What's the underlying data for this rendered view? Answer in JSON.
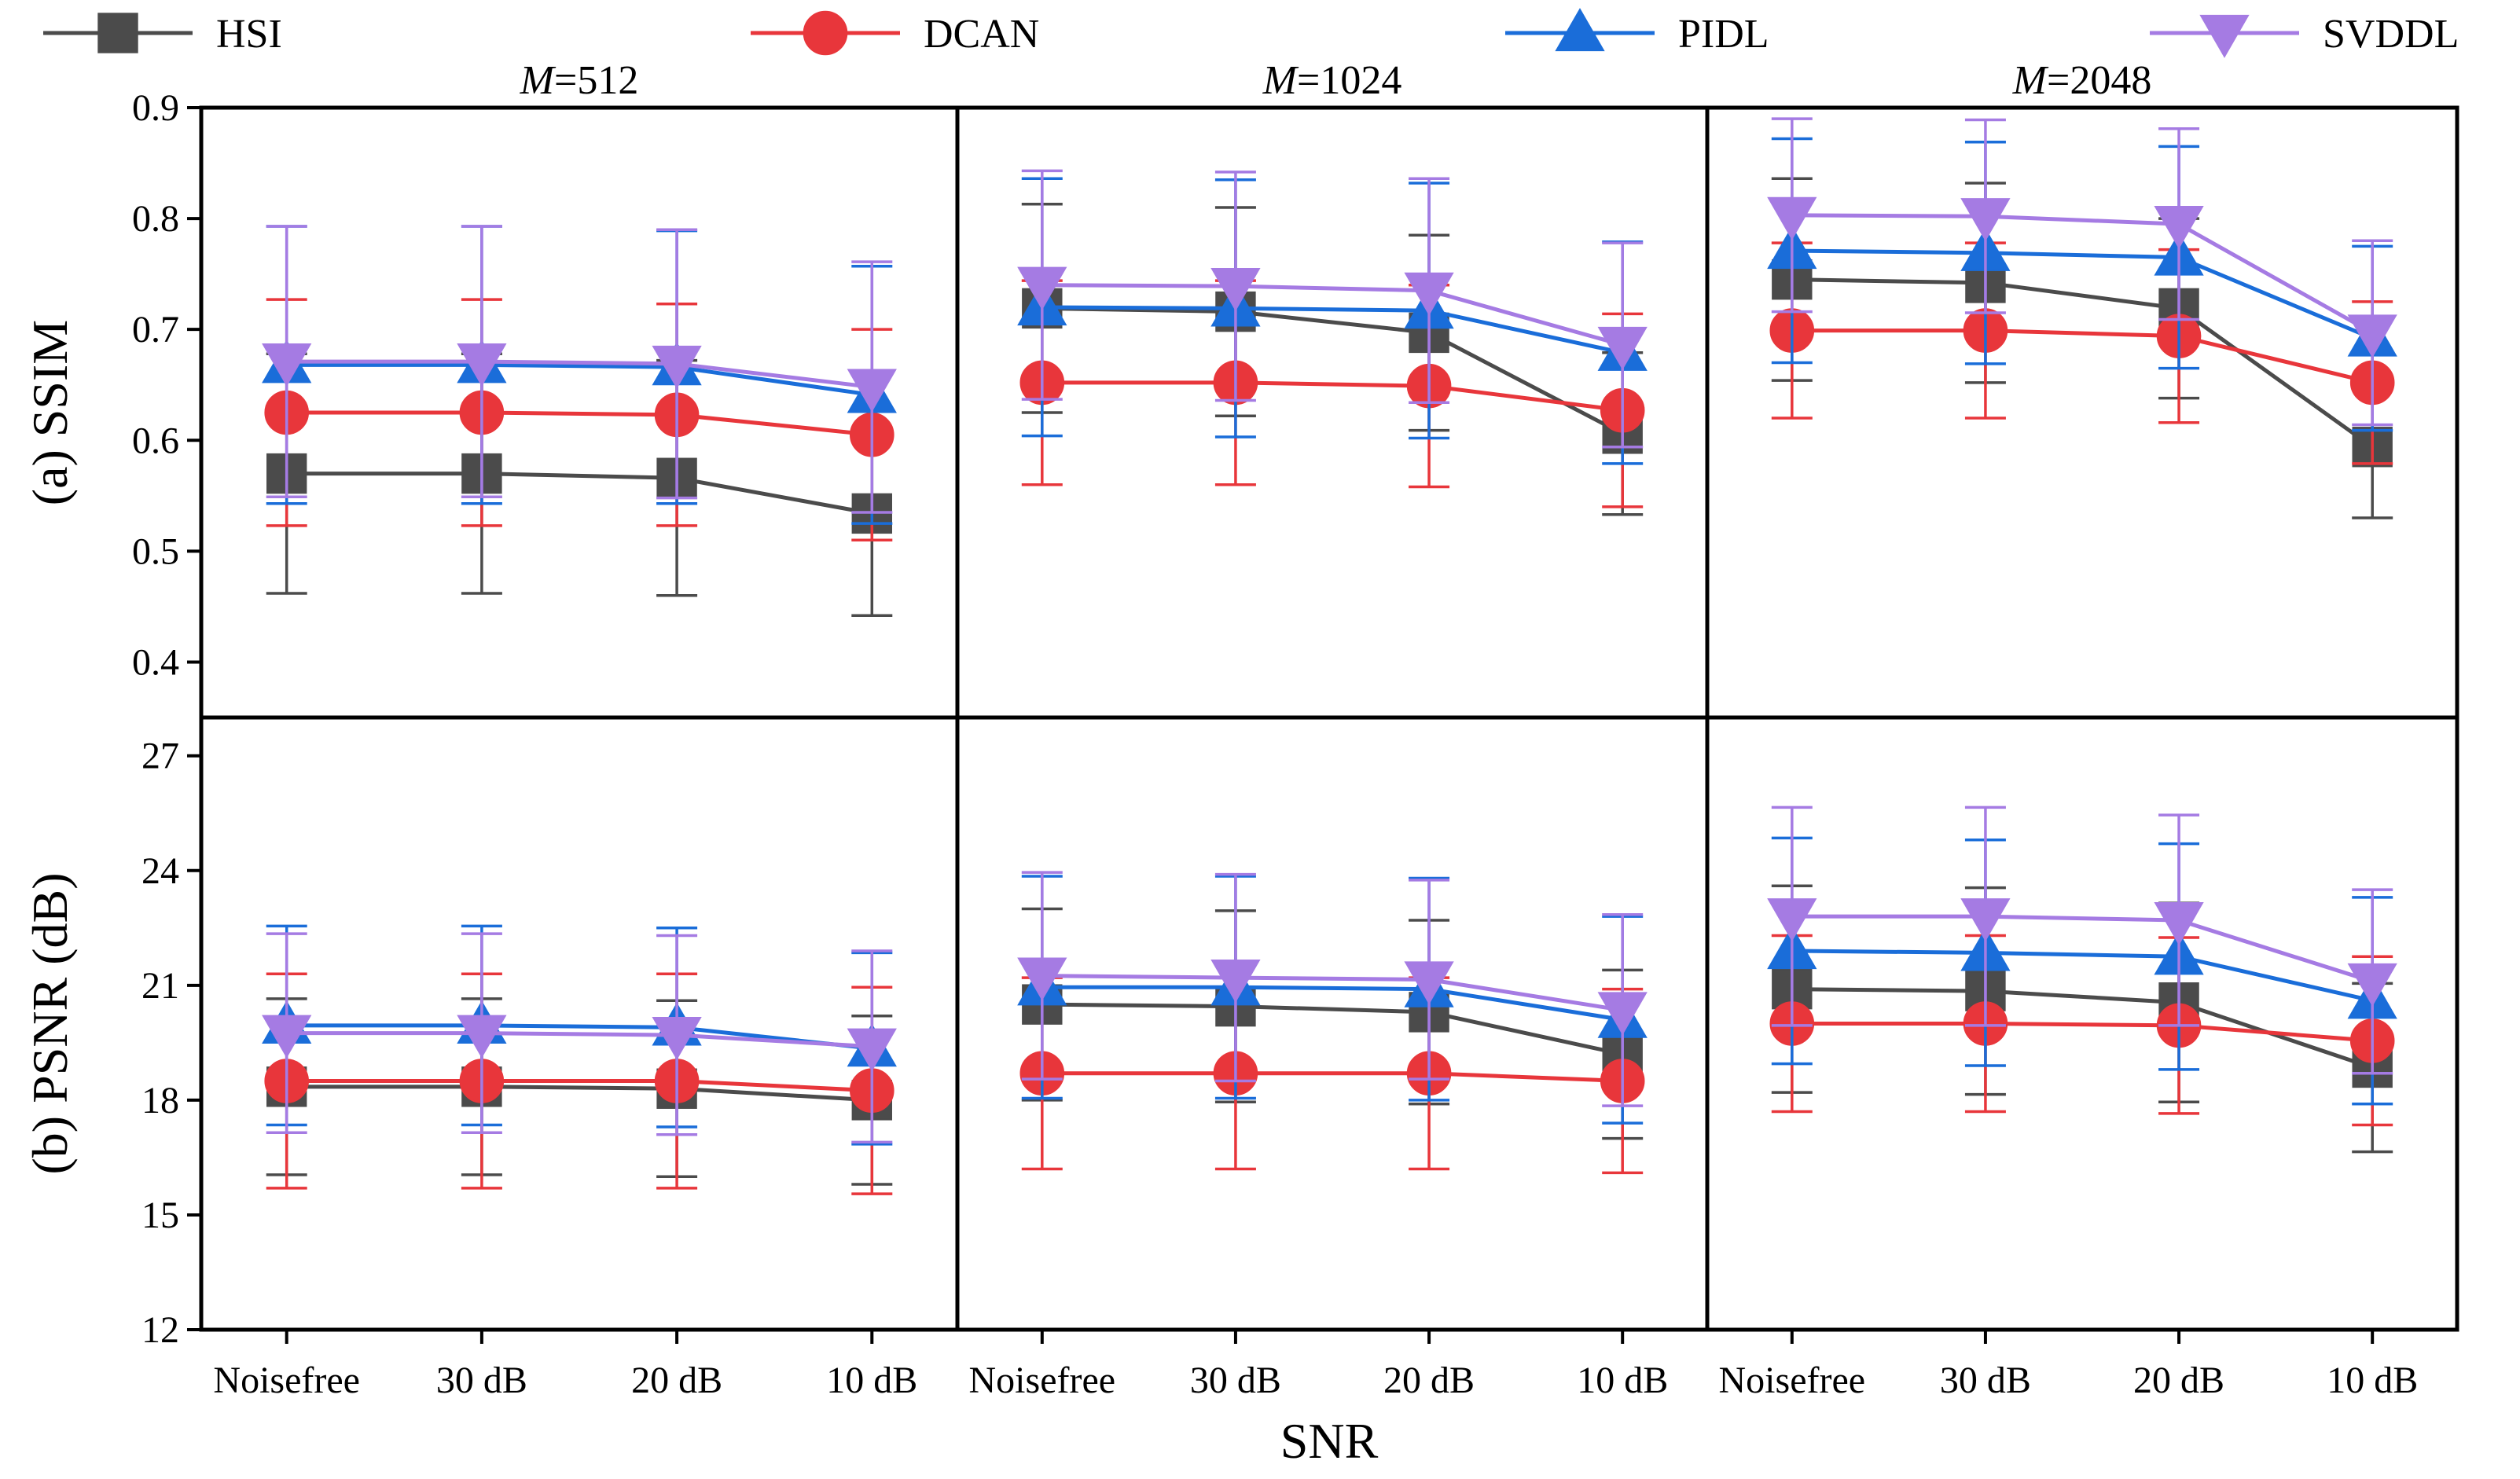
{
  "chart_data": {
    "type": "line",
    "legend": [
      "HSI",
      "DCAN",
      "PIDL",
      "SVDDL"
    ],
    "colors": {
      "HSI": "#4b4b4b",
      "DCAN": "#e8363b",
      "PIDL": "#1a6dd9",
      "SVDDL": "#a57be3"
    },
    "markers": {
      "HSI": "square",
      "DCAN": "circle",
      "PIDL": "triangle-up",
      "SVDDL": "triangle-down"
    },
    "categories": [
      "Noisefree",
      "30 dB",
      "20 dB",
      "10 dB"
    ],
    "xlabel": "SNR",
    "rows": [
      {
        "ylabel": "(a) SSIM",
        "ylim": [
          0.35,
          0.9
        ],
        "ticks": [
          0.4,
          0.5,
          0.6,
          0.7,
          0.8,
          0.9
        ],
        "tick_labels": [
          "0.4",
          "0.5",
          "0.6",
          "0.7",
          "0.8",
          "0.9"
        ]
      },
      {
        "ylabel": "(b) PSNR (dB)",
        "ylim": [
          12,
          28
        ],
        "ticks": [
          12,
          15,
          18,
          21,
          24,
          27
        ],
        "tick_labels": [
          "12",
          "15",
          "18",
          "21",
          "24",
          "27"
        ]
      }
    ],
    "panels": [
      {
        "title_italic": "M",
        "title_rest": "=512",
        "row": 0,
        "col": 0,
        "series": [
          {
            "name": "HSI",
            "values": [
              0.57,
              0.57,
              0.566,
              0.534
            ],
            "err": [
              0.108,
              0.108,
              0.106,
              0.092
            ]
          },
          {
            "name": "DCAN",
            "values": [
              0.625,
              0.625,
              0.623,
              0.605
            ],
            "err": [
              0.102,
              0.102,
              0.1,
              0.095
            ]
          },
          {
            "name": "PIDL",
            "values": [
              0.668,
              0.668,
              0.666,
              0.641
            ],
            "err": [
              0.125,
              0.125,
              0.123,
              0.116
            ]
          },
          {
            "name": "SVDDL",
            "values": [
              0.671,
              0.671,
              0.669,
              0.648
            ],
            "err": [
              0.122,
              0.122,
              0.121,
              0.113
            ]
          }
        ]
      },
      {
        "title_italic": "M",
        "title_rest": "=1024",
        "row": 0,
        "col": 1,
        "series": [
          {
            "name": "HSI",
            "values": [
              0.719,
              0.716,
              0.697,
              0.606
            ],
            "err": [
              0.094,
              0.094,
              0.088,
              0.073
            ]
          },
          {
            "name": "DCAN",
            "values": [
              0.652,
              0.652,
              0.649,
              0.627
            ],
            "err": [
              0.092,
              0.092,
              0.091,
              0.087
            ]
          },
          {
            "name": "PIDL",
            "values": [
              0.72,
              0.719,
              0.717,
              0.679
            ],
            "err": [
              0.116,
              0.116,
              0.115,
              0.1
            ]
          },
          {
            "name": "SVDDL",
            "values": [
              0.74,
              0.739,
              0.735,
              0.686
            ],
            "err": [
              0.103,
              0.103,
              0.101,
              0.092
            ]
          }
        ]
      },
      {
        "title_italic": "M",
        "title_rest": "=2048",
        "row": 0,
        "col": 2,
        "series": [
          {
            "name": "HSI",
            "values": [
              0.745,
              0.742,
              0.719,
              0.594
            ],
            "err": [
              0.091,
              0.09,
              0.081,
              0.064
            ]
          },
          {
            "name": "DCAN",
            "values": [
              0.699,
              0.699,
              0.694,
              0.652
            ],
            "err": [
              0.079,
              0.079,
              0.078,
              0.073
            ]
          },
          {
            "name": "PIDL",
            "values": [
              0.771,
              0.769,
              0.765,
              0.692
            ],
            "err": [
              0.101,
              0.1,
              0.1,
              0.083
            ]
          },
          {
            "name": "SVDDL",
            "values": [
              0.803,
              0.802,
              0.795,
              0.697
            ],
            "err": [
              0.087,
              0.087,
              0.086,
              0.083
            ]
          }
        ]
      },
      {
        "title_italic": "",
        "title_rest": "",
        "row": 1,
        "col": 0,
        "series": [
          {
            "name": "HSI",
            "values": [
              18.35,
              18.35,
              18.3,
              18.0
            ],
            "err": [
              2.3,
              2.3,
              2.3,
              2.2
            ]
          },
          {
            "name": "DCAN",
            "values": [
              18.5,
              18.5,
              18.5,
              18.25
            ],
            "err": [
              2.8,
              2.8,
              2.8,
              2.7
            ]
          },
          {
            "name": "PIDL",
            "values": [
              19.95,
              19.95,
              19.9,
              19.35
            ],
            "err": [
              2.6,
              2.6,
              2.6,
              2.5
            ]
          },
          {
            "name": "SVDDL",
            "values": [
              19.75,
              19.75,
              19.7,
              19.4
            ],
            "err": [
              2.6,
              2.6,
              2.6,
              2.5
            ]
          }
        ]
      },
      {
        "title_italic": "",
        "title_rest": "",
        "row": 1,
        "col": 1,
        "series": [
          {
            "name": "HSI",
            "values": [
              20.5,
              20.45,
              20.3,
              19.2
            ],
            "err": [
              2.5,
              2.5,
              2.4,
              2.2
            ]
          },
          {
            "name": "DCAN",
            "values": [
              18.7,
              18.7,
              18.7,
              18.5
            ],
            "err": [
              2.5,
              2.5,
              2.5,
              2.4
            ]
          },
          {
            "name": "PIDL",
            "values": [
              20.95,
              20.95,
              20.9,
              20.1
            ],
            "err": [
              2.9,
              2.9,
              2.9,
              2.7
            ]
          },
          {
            "name": "SVDDL",
            "values": [
              21.25,
              21.2,
              21.15,
              20.35
            ],
            "err": [
              2.7,
              2.7,
              2.6,
              2.5
            ]
          }
        ]
      },
      {
        "title_italic": "",
        "title_rest": "",
        "row": 1,
        "col": 2,
        "series": [
          {
            "name": "HSI",
            "values": [
              20.9,
              20.85,
              20.55,
              18.85
            ],
            "err": [
              2.7,
              2.7,
              2.6,
              2.2
            ]
          },
          {
            "name": "DCAN",
            "values": [
              20.0,
              20.0,
              19.95,
              19.55
            ],
            "err": [
              2.3,
              2.3,
              2.3,
              2.2
            ]
          },
          {
            "name": "PIDL",
            "values": [
              21.9,
              21.85,
              21.75,
              20.6
            ],
            "err": [
              2.95,
              2.95,
              2.95,
              2.7
            ]
          },
          {
            "name": "SVDDL",
            "values": [
              22.8,
              22.8,
              22.7,
              21.1
            ],
            "err": [
              2.85,
              2.85,
              2.75,
              2.4
            ]
          }
        ]
      }
    ]
  }
}
